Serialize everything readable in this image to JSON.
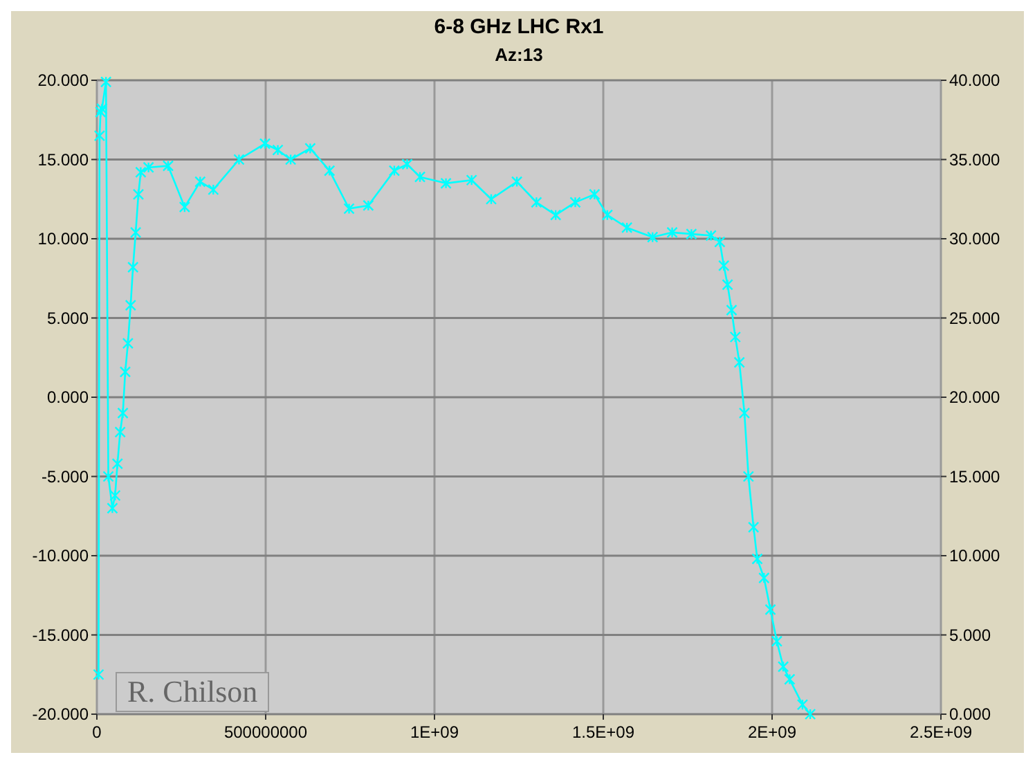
{
  "chart_data": {
    "type": "line",
    "title": "6-8 GHz LHC Rx1",
    "subtitle": "Az:13",
    "x": [
      5000000,
      8000000,
      11000000,
      15000000,
      27000000,
      34000000,
      46000000,
      54000000,
      61000000,
      69000000,
      77000000,
      84000000,
      92000000,
      100000000,
      107000000,
      115000000,
      123000000,
      130000000,
      153000000,
      211000000,
      260000000,
      306000000,
      345000000,
      421000000,
      498000000,
      536000000,
      574000000,
      632000000,
      689000000,
      747000000,
      804000000,
      881000000,
      919000000,
      957000000,
      1034000000,
      1110000000,
      1168000000,
      1244000000,
      1302000000,
      1359000000,
      1417000000,
      1474000000,
      1512000000,
      1570000000,
      1646000000,
      1704000000,
      1761000000,
      1819000000,
      1845000000,
      1857000000,
      1868000000,
      1880000000,
      1891000000,
      1903000000,
      1918000000,
      1930000000,
      1945000000,
      1956000000,
      1976000000,
      1995000000,
      2014000000,
      2033000000,
      2052000000,
      2090000000,
      2113000000
    ],
    "series": [
      {
        "color": "#00ffff",
        "values": [
          -17.5,
          16.5,
          18,
          18.2,
          19.9,
          -5,
          -7,
          -6.2,
          -4.2,
          -2.2,
          -1,
          1.6,
          3.4,
          5.8,
          8.2,
          10.4,
          12.8,
          14.2,
          14.5,
          14.6,
          12,
          13.6,
          13.1,
          15,
          16,
          15.6,
          15,
          15.7,
          14.3,
          11.9,
          12.1,
          14.3,
          14.7,
          13.9,
          13.5,
          13.7,
          12.5,
          13.6,
          12.3,
          11.5,
          12.3,
          12.8,
          11.5,
          10.7,
          10.1,
          10.4,
          10.3,
          10.2,
          9.8,
          8.3,
          7.1,
          5.5,
          3.8,
          2.2,
          -1,
          -5,
          -8.2,
          -10.2,
          -11.4,
          -13.4,
          -15.4,
          -17,
          -17.8,
          -19.4,
          -20
        ]
      }
    ],
    "xlim": [
      0,
      2500000000
    ],
    "xticks": [
      0,
      {
        "value": 500000000,
        "label": "500000000"
      },
      {
        "value": 1000000000,
        "label": "1E+09"
      },
      {
        "value": 1500000000,
        "label": "1.5E+09"
      },
      {
        "value": 2000000000,
        "label": "2E+09"
      },
      {
        "value": 2500000000,
        "label": "2.5E+09"
      }
    ],
    "ylim": [
      -20,
      20
    ],
    "yticks": [
      {
        "value": -20,
        "label": "-20.000"
      },
      {
        "value": -15,
        "label": "-15.000"
      },
      {
        "value": -10,
        "label": "-10.000"
      },
      {
        "value": -5,
        "label": "-5.000"
      },
      {
        "value": 0,
        "label": "0.000"
      },
      {
        "value": 5,
        "label": "5.000"
      },
      {
        "value": 10,
        "label": "10.000"
      },
      {
        "value": 15,
        "label": "15.000"
      },
      {
        "value": 20,
        "label": "20.000"
      }
    ],
    "y2lim": [
      0,
      40
    ],
    "y2ticks": [
      {
        "value": 0,
        "label": "0.000"
      },
      {
        "value": 5,
        "label": "5.000"
      },
      {
        "value": 10,
        "label": "10.000"
      },
      {
        "value": 15,
        "label": "15.000"
      },
      {
        "value": 20,
        "label": "20.000"
      },
      {
        "value": 25,
        "label": "25.000"
      },
      {
        "value": 30,
        "label": "30.000"
      },
      {
        "value": 35,
        "label": "35.000"
      },
      {
        "value": 40,
        "label": "40.000"
      }
    ],
    "grid": true,
    "marker": "cross",
    "line_style": "solid",
    "annotations": [
      "R. Chilson"
    ]
  }
}
